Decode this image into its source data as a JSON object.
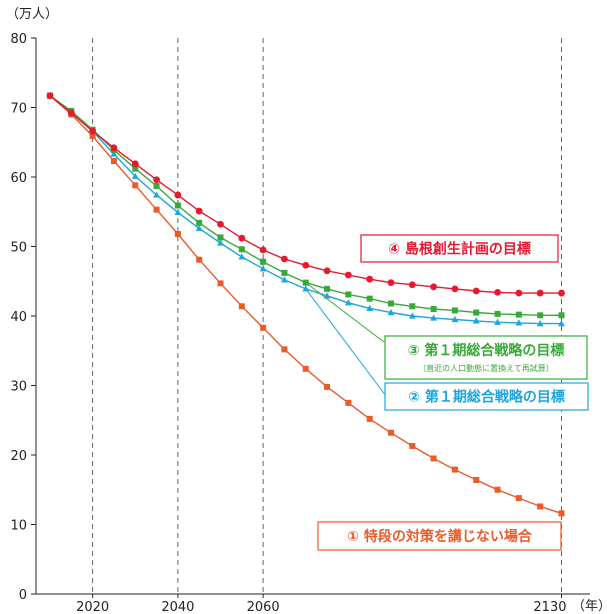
{
  "chart_data": {
    "type": "line",
    "y_unit_label": "（万人）",
    "x_unit_label": "（年）",
    "ylim": [
      0,
      80
    ],
    "y_ticks": [
      "0",
      "10",
      "20",
      "30",
      "40",
      "50",
      "60",
      "70",
      "80"
    ],
    "x_ticks": [
      "2020",
      "2040",
      "2060",
      "2130"
    ],
    "x_tick_values": [
      2020,
      2040,
      2060,
      2130
    ],
    "grid": "vertical dashed at 2020, 2040, 2060, 2130",
    "x": [
      2010,
      2015,
      2020,
      2025,
      2030,
      2035,
      2040,
      2045,
      2050,
      2055,
      2060,
      2065,
      2070,
      2075,
      2080,
      2085,
      2090,
      2095,
      2100,
      2105,
      2110,
      2115,
      2120,
      2125,
      2130
    ],
    "series": [
      {
        "key": "s1",
        "name": "① 特段の対策を講じない場合",
        "color": "#ea5b2a",
        "marker": "square",
        "values": [
          71.7,
          69.0,
          65.9,
          62.3,
          58.8,
          55.3,
          51.8,
          48.1,
          44.7,
          41.4,
          38.3,
          35.2,
          32.4,
          29.8,
          27.5,
          25.2,
          23.2,
          21.3,
          19.5,
          17.9,
          16.4,
          15.0,
          13.8,
          12.6,
          11.6
        ]
      },
      {
        "key": "s2",
        "name": "② 第１期総合戦略の目標",
        "color": "#1ba6de",
        "marker": "triangle",
        "values": [
          71.7,
          69.4,
          66.6,
          63.3,
          60.1,
          57.4,
          54.9,
          52.6,
          50.5,
          48.5,
          46.8,
          45.2,
          43.9,
          42.9,
          41.9,
          41.1,
          40.5,
          40.0,
          39.7,
          39.5,
          39.3,
          39.1,
          39.0,
          38.9,
          38.9
        ]
      },
      {
        "key": "s3",
        "name": "③ 第１期総合戦略の目標",
        "subname": "（直近の人口動態に置換えて再試算）",
        "color": "#37a938",
        "marker": "square",
        "values": [
          71.7,
          69.5,
          66.8,
          63.9,
          61.2,
          58.7,
          55.9,
          53.4,
          51.3,
          49.6,
          47.8,
          46.2,
          44.8,
          43.9,
          43.1,
          42.5,
          41.8,
          41.4,
          41.0,
          40.8,
          40.5,
          40.3,
          40.2,
          40.1,
          40.1
        ]
      },
      {
        "key": "s4",
        "name": "④ 島根創生計画の目標",
        "color": "#e8182e",
        "marker": "circle",
        "values": [
          71.7,
          69.2,
          66.6,
          64.2,
          61.9,
          59.6,
          57.4,
          55.1,
          53.2,
          51.2,
          49.5,
          48.2,
          47.3,
          46.5,
          45.9,
          45.3,
          44.8,
          44.5,
          44.2,
          43.9,
          43.6,
          43.4,
          43.3,
          43.3,
          43.3
        ]
      }
    ]
  }
}
